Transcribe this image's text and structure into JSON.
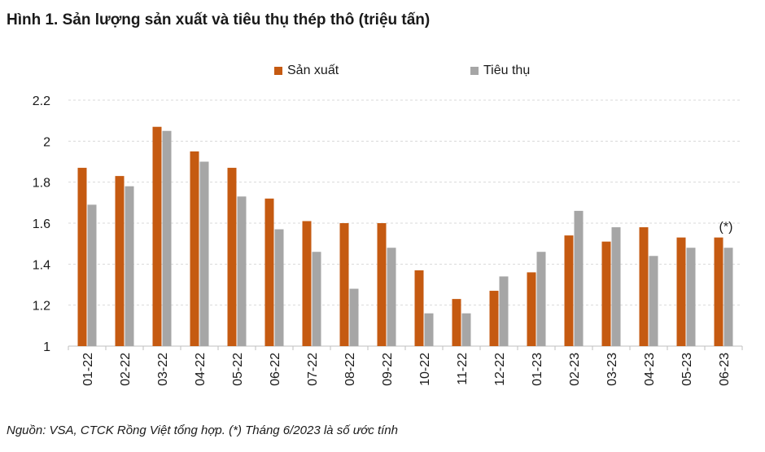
{
  "title": "Hình 1. Sản lượng sản xuất và tiêu thụ thép thô (triệu tấn)",
  "source": "Nguồn: VSA, CTCK Rồng Việt tổng hợp. (*) Tháng 6/2023 là số ước tính",
  "colors": {
    "production": "#c55a11",
    "consumption": "#a6a6a6",
    "grid": "#d9d9d9"
  },
  "chart_data": {
    "type": "bar",
    "title": "Hình 1. Sản lượng sản xuất và tiêu thụ thép thô (triệu tấn)",
    "xlabel": "",
    "ylabel": "",
    "categories": [
      "01-22",
      "02-22",
      "03-22",
      "04-22",
      "05-22",
      "06-22",
      "07-22",
      "08-22",
      "09-22",
      "10-22",
      "11-22",
      "12-22",
      "01-23",
      "02-23",
      "03-23",
      "04-23",
      "05-23",
      "06-23"
    ],
    "series": [
      {
        "name": "Sản xuất",
        "values": [
          1.87,
          1.83,
          2.07,
          1.95,
          1.87,
          1.72,
          1.61,
          1.6,
          1.6,
          1.37,
          1.23,
          1.27,
          1.36,
          1.54,
          1.51,
          1.58,
          1.53,
          1.53
        ]
      },
      {
        "name": "Tiêu thụ",
        "values": [
          1.69,
          1.78,
          2.05,
          1.9,
          1.73,
          1.57,
          1.46,
          1.28,
          1.48,
          1.16,
          1.16,
          1.34,
          1.46,
          1.66,
          1.58,
          1.44,
          1.48,
          1.48
        ]
      }
    ],
    "ylim": [
      1,
      2.2
    ],
    "yticks": [
      "1",
      "1.2",
      "1.4",
      "1.6",
      "1.8",
      "2",
      "2.2"
    ],
    "annotation": "(*)",
    "grid": true,
    "legend": "top-center"
  }
}
